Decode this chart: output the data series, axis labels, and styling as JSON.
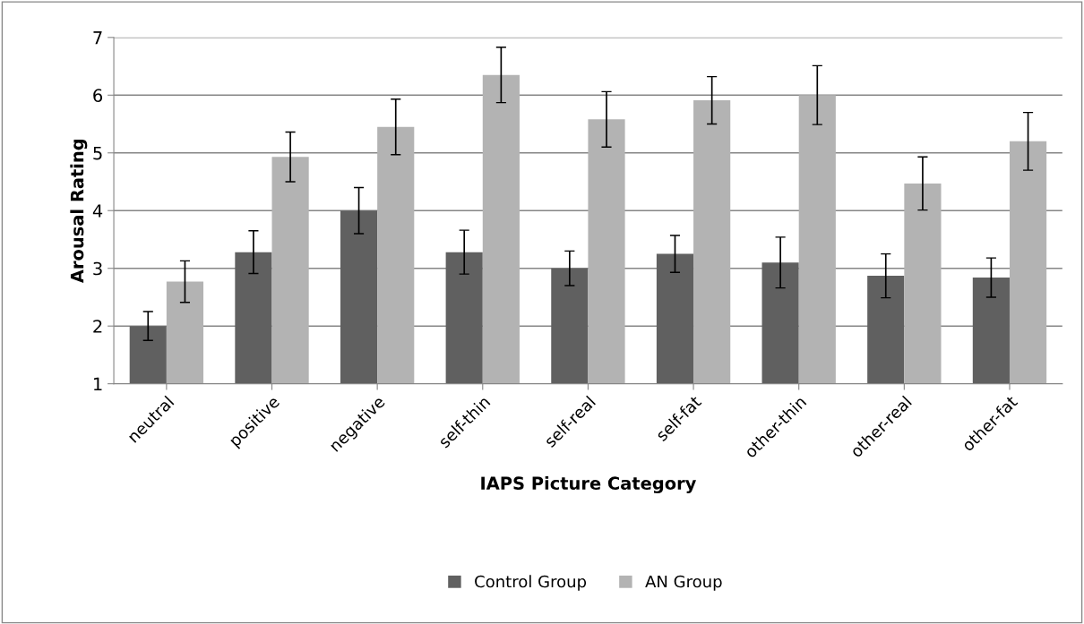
{
  "chart_data": {
    "type": "bar",
    "xlabel": "IAPS Picture Category",
    "ylabel": "Arousal Rating",
    "categories": [
      "neutral",
      "positive",
      "negative",
      "self-thin",
      "self-real",
      "self-fat",
      "other-thin",
      "other-real",
      "other-fat"
    ],
    "series": [
      {
        "name": "Control Group",
        "color": "#606060",
        "values": [
          2.0,
          3.28,
          4.0,
          3.28,
          3.0,
          3.25,
          3.1,
          2.87,
          2.84
        ],
        "errors": [
          0.25,
          0.37,
          0.4,
          0.38,
          0.3,
          0.32,
          0.44,
          0.38,
          0.34
        ]
      },
      {
        "name": "AN Group",
        "color": "#b3b3b3",
        "values": [
          2.77,
          4.93,
          5.45,
          6.35,
          5.58,
          5.91,
          6.0,
          4.47,
          5.2
        ],
        "errors": [
          0.36,
          0.43,
          0.48,
          0.48,
          0.48,
          0.41,
          0.51,
          0.46,
          0.5
        ]
      }
    ],
    "ylim": [
      1,
      7
    ],
    "yticks": [
      1,
      2,
      3,
      4,
      5,
      6,
      7
    ],
    "grid": "y",
    "legend": "bottom"
  }
}
